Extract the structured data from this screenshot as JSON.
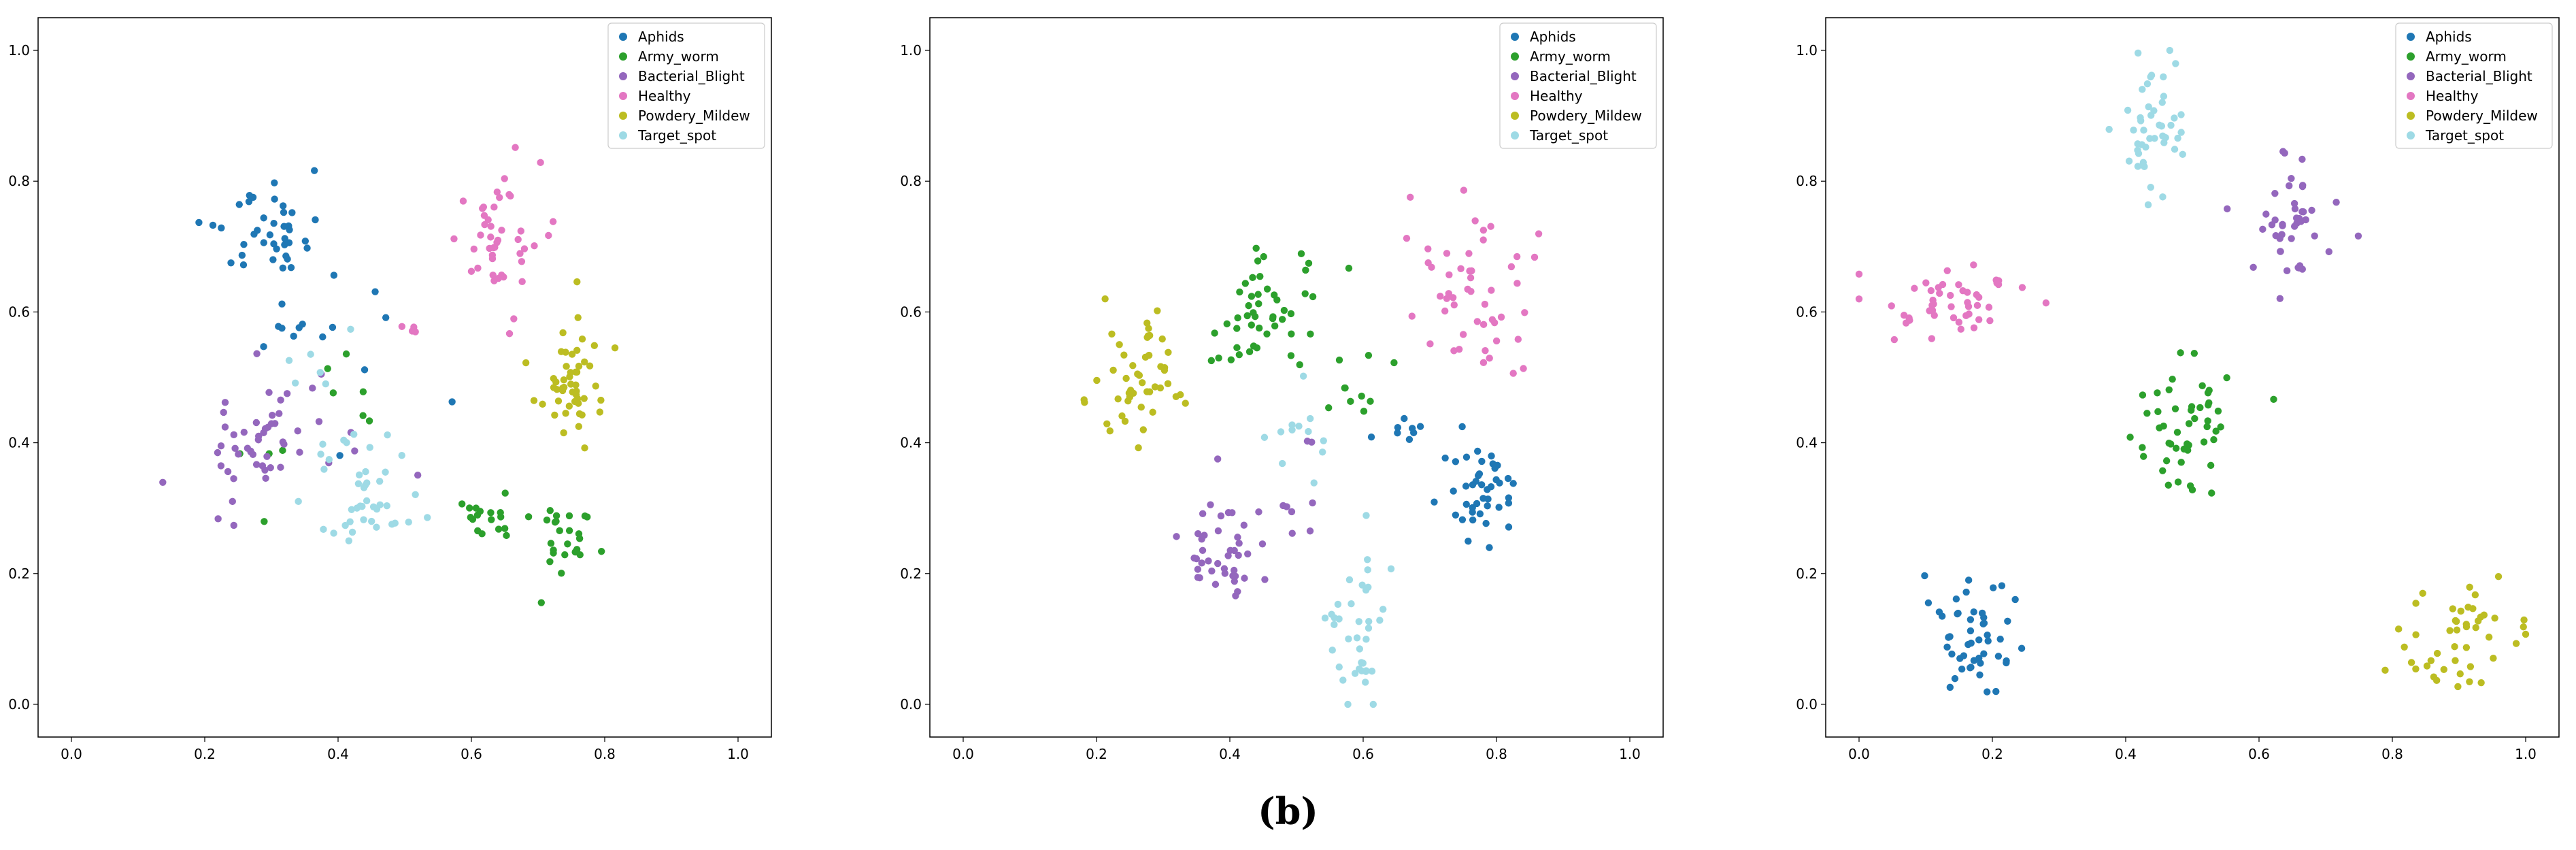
{
  "caption": "(b)",
  "colors": {
    "Aphids": "#1f77b4",
    "Army_worm": "#2ca02c",
    "Bacterial_Blight": "#9467bd",
    "Healthy": "#e377c2",
    "Powdery_Mildew": "#bcbd22",
    "Target_spot": "#9edae5"
  },
  "chart_data": [
    {
      "type": "scatter",
      "xlim": [
        -0.05,
        1.05
      ],
      "ylim": [
        -0.05,
        1.05
      ],
      "xticks": [
        "0.0",
        "0.2",
        "0.4",
        "0.6",
        "0.8",
        "1.0"
      ],
      "yticks": [
        "0.0",
        "0.2",
        "0.4",
        "0.6",
        "0.8",
        "1.0"
      ],
      "grid": false,
      "legend": "top-right",
      "series": [
        {
          "name": "Aphids",
          "clusters": [
            {
              "cx": 0.29,
              "cy": 0.72,
              "sx": 0.045,
              "sy": 0.04,
              "n": 40
            },
            {
              "cx": 0.34,
              "cy": 0.59,
              "sx": 0.03,
              "sy": 0.05,
              "n": 8
            },
            {
              "cx": 0.44,
              "cy": 0.5,
              "sx": 0.05,
              "sy": 0.06,
              "n": 6
            }
          ]
        },
        {
          "name": "Army_worm",
          "clusters": [
            {
              "cx": 0.75,
              "cy": 0.26,
              "sx": 0.03,
              "sy": 0.03,
              "n": 24
            },
            {
              "cx": 0.63,
              "cy": 0.29,
              "sx": 0.025,
              "sy": 0.03,
              "n": 18
            },
            {
              "cx": 0.41,
              "cy": 0.48,
              "sx": 0.03,
              "sy": 0.03,
              "n": 6
            },
            {
              "cx": 0.27,
              "cy": 0.36,
              "sx": 0.04,
              "sy": 0.06,
              "n": 4
            }
          ]
        },
        {
          "name": "Bacterial_Blight",
          "clusters": [
            {
              "cx": 0.26,
              "cy": 0.39,
              "sx": 0.045,
              "sy": 0.05,
              "n": 38
            },
            {
              "cx": 0.34,
              "cy": 0.45,
              "sx": 0.03,
              "sy": 0.04,
              "n": 10
            },
            {
              "cx": 0.48,
              "cy": 0.36,
              "sx": 0.05,
              "sy": 0.08,
              "n": 4
            }
          ]
        },
        {
          "name": "Healthy",
          "clusters": [
            {
              "cx": 0.64,
              "cy": 0.7,
              "sx": 0.03,
              "sy": 0.06,
              "n": 45
            },
            {
              "cx": 0.51,
              "cy": 0.58,
              "sx": 0.02,
              "sy": 0.04,
              "n": 4
            }
          ]
        },
        {
          "name": "Powdery_Mildew",
          "clusters": [
            {
              "cx": 0.75,
              "cy": 0.5,
              "sx": 0.03,
              "sy": 0.05,
              "n": 50
            }
          ]
        },
        {
          "name": "Target_spot",
          "clusters": [
            {
              "cx": 0.44,
              "cy": 0.32,
              "sx": 0.04,
              "sy": 0.05,
              "n": 42
            },
            {
              "cx": 0.35,
              "cy": 0.5,
              "sx": 0.03,
              "sy": 0.06,
              "n": 6
            }
          ]
        }
      ]
    },
    {
      "type": "scatter",
      "xlim": [
        -0.05,
        1.05
      ],
      "ylim": [
        -0.05,
        1.05
      ],
      "xticks": [
        "0.0",
        "0.2",
        "0.4",
        "0.6",
        "0.8",
        "1.0"
      ],
      "yticks": [
        "0.0",
        "0.2",
        "0.4",
        "0.6",
        "0.8",
        "1.0"
      ],
      "grid": false,
      "legend": "top-right",
      "series": [
        {
          "name": "Aphids",
          "clusters": [
            {
              "cx": 0.78,
              "cy": 0.32,
              "sx": 0.03,
              "sy": 0.045,
              "n": 42
            },
            {
              "cx": 0.67,
              "cy": 0.43,
              "sx": 0.03,
              "sy": 0.03,
              "n": 8
            }
          ]
        },
        {
          "name": "Army_worm",
          "clusters": [
            {
              "cx": 0.46,
              "cy": 0.61,
              "sx": 0.04,
              "sy": 0.04,
              "n": 48
            },
            {
              "cx": 0.58,
              "cy": 0.49,
              "sx": 0.03,
              "sy": 0.04,
              "n": 10
            }
          ]
        },
        {
          "name": "Bacterial_Blight",
          "clusters": [
            {
              "cx": 0.39,
              "cy": 0.25,
              "sx": 0.035,
              "sy": 0.05,
              "n": 42
            },
            {
              "cx": 0.5,
              "cy": 0.33,
              "sx": 0.02,
              "sy": 0.04,
              "n": 8
            }
          ]
        },
        {
          "name": "Healthy",
          "clusters": [
            {
              "cx": 0.76,
              "cy": 0.64,
              "sx": 0.045,
              "sy": 0.07,
              "n": 50
            }
          ]
        },
        {
          "name": "Powdery_Mildew",
          "clusters": [
            {
              "cx": 0.26,
              "cy": 0.51,
              "sx": 0.035,
              "sy": 0.05,
              "n": 48
            }
          ]
        },
        {
          "name": "Target_spot",
          "clusters": [
            {
              "cx": 0.59,
              "cy": 0.12,
              "sx": 0.02,
              "sy": 0.065,
              "n": 38
            },
            {
              "cx": 0.52,
              "cy": 0.43,
              "sx": 0.03,
              "sy": 0.07,
              "n": 12
            }
          ]
        }
      ]
    },
    {
      "type": "scatter",
      "xlim": [
        -0.05,
        1.05
      ],
      "ylim": [
        -0.05,
        1.05
      ],
      "xticks": [
        "0.0",
        "0.2",
        "0.4",
        "0.6",
        "0.8",
        "1.0"
      ],
      "yticks": [
        "0.0",
        "0.2",
        "0.4",
        "0.6",
        "0.8",
        "1.0"
      ],
      "grid": false,
      "legend": "top-right",
      "series": [
        {
          "name": "Aphids",
          "clusters": [
            {
              "cx": 0.17,
              "cy": 0.1,
              "sx": 0.035,
              "sy": 0.045,
              "n": 48
            }
          ]
        },
        {
          "name": "Army_worm",
          "clusters": [
            {
              "cx": 0.49,
              "cy": 0.42,
              "sx": 0.04,
              "sy": 0.05,
              "n": 50
            }
          ]
        },
        {
          "name": "Bacterial_Blight",
          "clusters": [
            {
              "cx": 0.65,
              "cy": 0.74,
              "sx": 0.035,
              "sy": 0.04,
              "n": 44
            }
          ]
        },
        {
          "name": "Healthy",
          "clusters": [
            {
              "cx": 0.14,
              "cy": 0.61,
              "sx": 0.06,
              "sy": 0.03,
              "n": 48
            }
          ]
        },
        {
          "name": "Powdery_Mildew",
          "clusters": [
            {
              "cx": 0.9,
              "cy": 0.1,
              "sx": 0.05,
              "sy": 0.045,
              "n": 46
            }
          ]
        },
        {
          "name": "Target_spot",
          "clusters": [
            {
              "cx": 0.44,
              "cy": 0.89,
              "sx": 0.025,
              "sy": 0.05,
              "n": 45
            }
          ]
        }
      ]
    }
  ]
}
